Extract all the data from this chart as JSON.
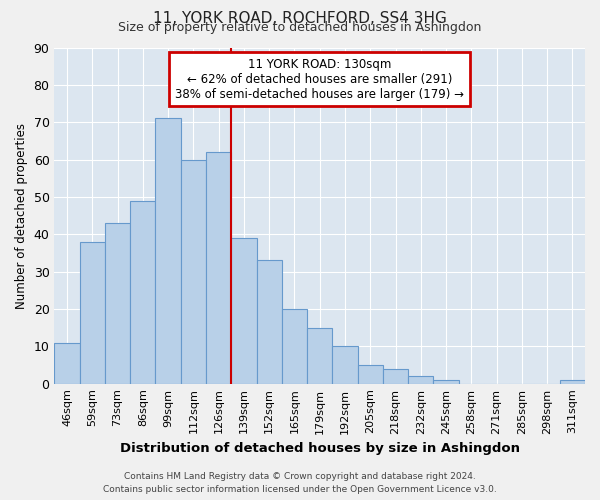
{
  "title": "11, YORK ROAD, ROCHFORD, SS4 3HG",
  "subtitle": "Size of property relative to detached houses in Ashingdon",
  "xlabel": "Distribution of detached houses by size in Ashingdon",
  "ylabel": "Number of detached properties",
  "bar_labels": [
    "46sqm",
    "59sqm",
    "73sqm",
    "86sqm",
    "99sqm",
    "112sqm",
    "126sqm",
    "139sqm",
    "152sqm",
    "165sqm",
    "179sqm",
    "192sqm",
    "205sqm",
    "218sqm",
    "232sqm",
    "245sqm",
    "258sqm",
    "271sqm",
    "285sqm",
    "298sqm",
    "311sqm"
  ],
  "bar_heights": [
    11,
    38,
    43,
    49,
    71,
    60,
    62,
    39,
    33,
    20,
    15,
    10,
    5,
    4,
    2,
    1,
    0,
    0,
    0,
    0,
    1
  ],
  "bar_color": "#b8d0e8",
  "bar_edge_color": "#6699cc",
  "plot_bg_color": "#dce6f0",
  "fig_bg_color": "#f0f0f0",
  "grid_color": "#ffffff",
  "ylim": [
    0,
    90
  ],
  "yticks": [
    0,
    10,
    20,
    30,
    40,
    50,
    60,
    70,
    80,
    90
  ],
  "red_line_x": 6.5,
  "annotation_line1": "11 YORK ROAD: 130sqm",
  "annotation_line2": "← 62% of detached houses are smaller (291)",
  "annotation_line3": "38% of semi-detached houses are larger (179) →",
  "annotation_box_color": "#ffffff",
  "annotation_box_edge_color": "#cc0000",
  "footer_line1": "Contains HM Land Registry data © Crown copyright and database right 2024.",
  "footer_line2": "Contains public sector information licensed under the Open Government Licence v3.0."
}
